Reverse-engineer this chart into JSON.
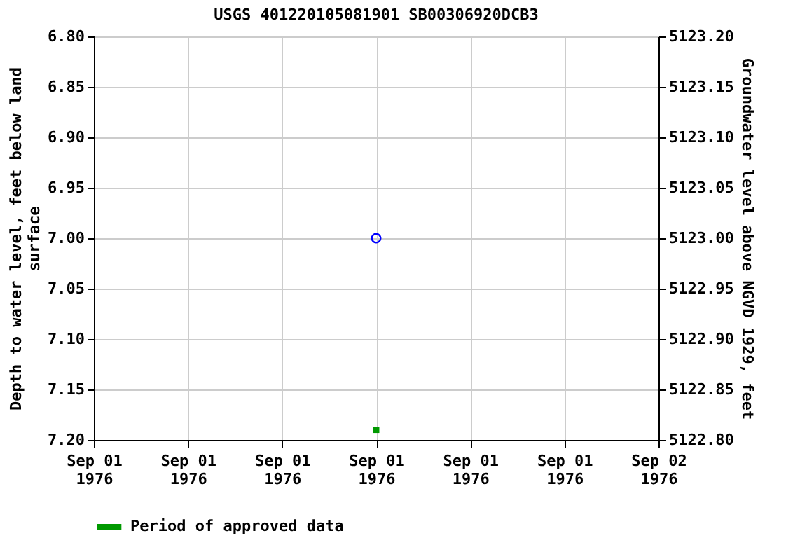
{
  "chart_data": {
    "type": "scatter",
    "title": "USGS 401220105081901 SB00306920DCB3",
    "ylabel": "Depth to water level, feet below land\nsurface",
    "y2label": "Groundwater level above NGVD 1929, feet",
    "x": [
      "1976-09-01T12:00"
    ],
    "series": [
      {
        "color": "#0000ff",
        "values": [
          7.0
        ],
        "marker": "circle"
      },
      {
        "name": "Period of approved data",
        "color": "#009900",
        "values": [
          7.19
        ],
        "marker": "square"
      }
    ],
    "xlim": [
      "1976-09-01T00:00",
      "1976-09-02T00:00"
    ],
    "xticks": [
      {
        "value": "1976-09-01T00:00",
        "label": "Sep 01\n1976"
      },
      {
        "value": "1976-09-01T04:00",
        "label": "Sep 01\n1976"
      },
      {
        "value": "1976-09-01T08:00",
        "label": "Sep 01\n1976"
      },
      {
        "value": "1976-09-01T12:00",
        "label": "Sep 01\n1976"
      },
      {
        "value": "1976-09-01T16:00",
        "label": "Sep 01\n1976"
      },
      {
        "value": "1976-09-01T20:00",
        "label": "Sep 01\n1976"
      },
      {
        "value": "1976-09-02T00:00",
        "label": "Sep 02\n1976"
      }
    ],
    "ylim": [
      7.2,
      6.8
    ],
    "yticks": [
      {
        "value": 6.8,
        "label": "6.80"
      },
      {
        "value": 6.85,
        "label": "6.85"
      },
      {
        "value": 6.9,
        "label": "6.90"
      },
      {
        "value": 6.95,
        "label": "6.95"
      },
      {
        "value": 7.0,
        "label": "7.00"
      },
      {
        "value": 7.05,
        "label": "7.05"
      },
      {
        "value": 7.1,
        "label": "7.10"
      },
      {
        "value": 7.15,
        "label": "7.15"
      },
      {
        "value": 7.2,
        "label": "7.20"
      }
    ],
    "y2lim": [
      5122.8,
      5123.2
    ],
    "y2ticks": [
      {
        "value": 5122.8,
        "label": "5122.80"
      },
      {
        "value": 5122.85,
        "label": "5122.85"
      },
      {
        "value": 5122.9,
        "label": "5122.90"
      },
      {
        "value": 5122.95,
        "label": "5122.95"
      },
      {
        "value": 5123.0,
        "label": "5123.00"
      },
      {
        "value": 5123.05,
        "label": "5123.05"
      },
      {
        "value": 5123.1,
        "label": "5123.10"
      },
      {
        "value": 5123.15,
        "label": "5123.15"
      },
      {
        "value": 5123.2,
        "label": "5123.20"
      }
    ],
    "grid": true,
    "legend": "bottom"
  }
}
